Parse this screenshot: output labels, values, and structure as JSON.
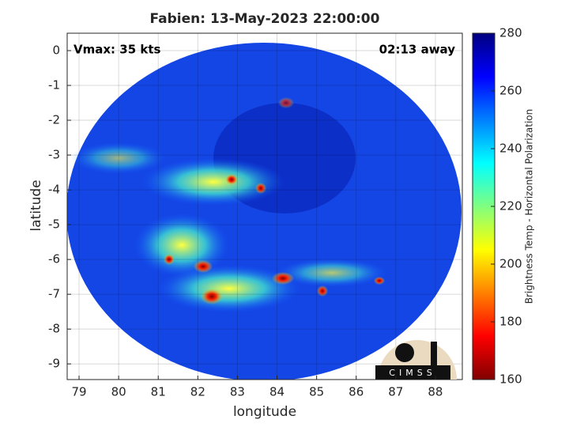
{
  "chart_data": {
    "type": "image",
    "title": "Fabien: 13-May-2023 22:00:00",
    "x_label": "longitude",
    "y_label": "latitude",
    "xlim": [
      78.7,
      88.68
    ],
    "xticks": [
      79,
      80,
      81,
      82,
      83,
      84,
      85,
      86,
      87,
      88
    ],
    "ylim": [
      -9.45,
      0.5
    ],
    "yticks": [
      -9,
      -8,
      -7,
      -6,
      -5,
      -4,
      -3,
      -2,
      -1,
      0
    ],
    "grid": true,
    "annotations": [
      "Vmax: 35 kts",
      "02:13 away"
    ],
    "logo": "CIMSS",
    "colorbar": {
      "label": "Brightness Temp - Horizontal Polarization",
      "lim": [
        160,
        280
      ],
      "ticks": [
        160,
        180,
        200,
        220,
        240,
        260,
        280
      ],
      "colors": [
        "#800000",
        "#ff0000",
        "#ff8000",
        "#ffff00",
        "#80ff80",
        "#00ffff",
        "#0080ff",
        "#0000ff",
        "#000080"
      ]
    }
  }
}
